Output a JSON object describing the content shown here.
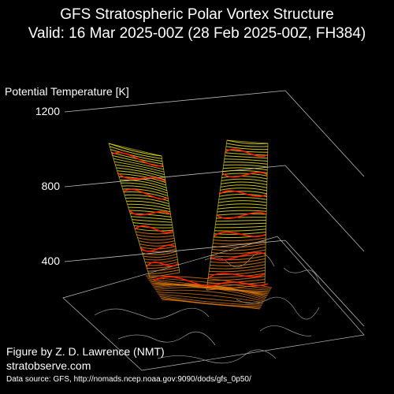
{
  "chart_data": {
    "type": "3d-isosurface",
    "title": "GFS Stratospheric Polar Vortex Structure",
    "subtitle": "Valid: 16 Mar 2025-00Z  (28 Feb 2025-00Z, FH384)",
    "zlabel": "Potential Temperature [K]",
    "z_ticks": [
      400,
      800,
      1200
    ],
    "zlim": [
      300,
      1250
    ],
    "colors": {
      "background": "#000000",
      "grid": "#bbbbbb",
      "surface_low": "#e07a10",
      "surface_high": "#e8e020",
      "contour": "#ff1a00",
      "coastline": "#999999"
    }
  },
  "credits": {
    "author": "Figure by Z. D. Lawrence (NMT)",
    "site": "stratobserve.com",
    "source": "Data source: GFS, http://nomads.ncep.noaa.gov:9090/dods/gfs_0p50/"
  }
}
